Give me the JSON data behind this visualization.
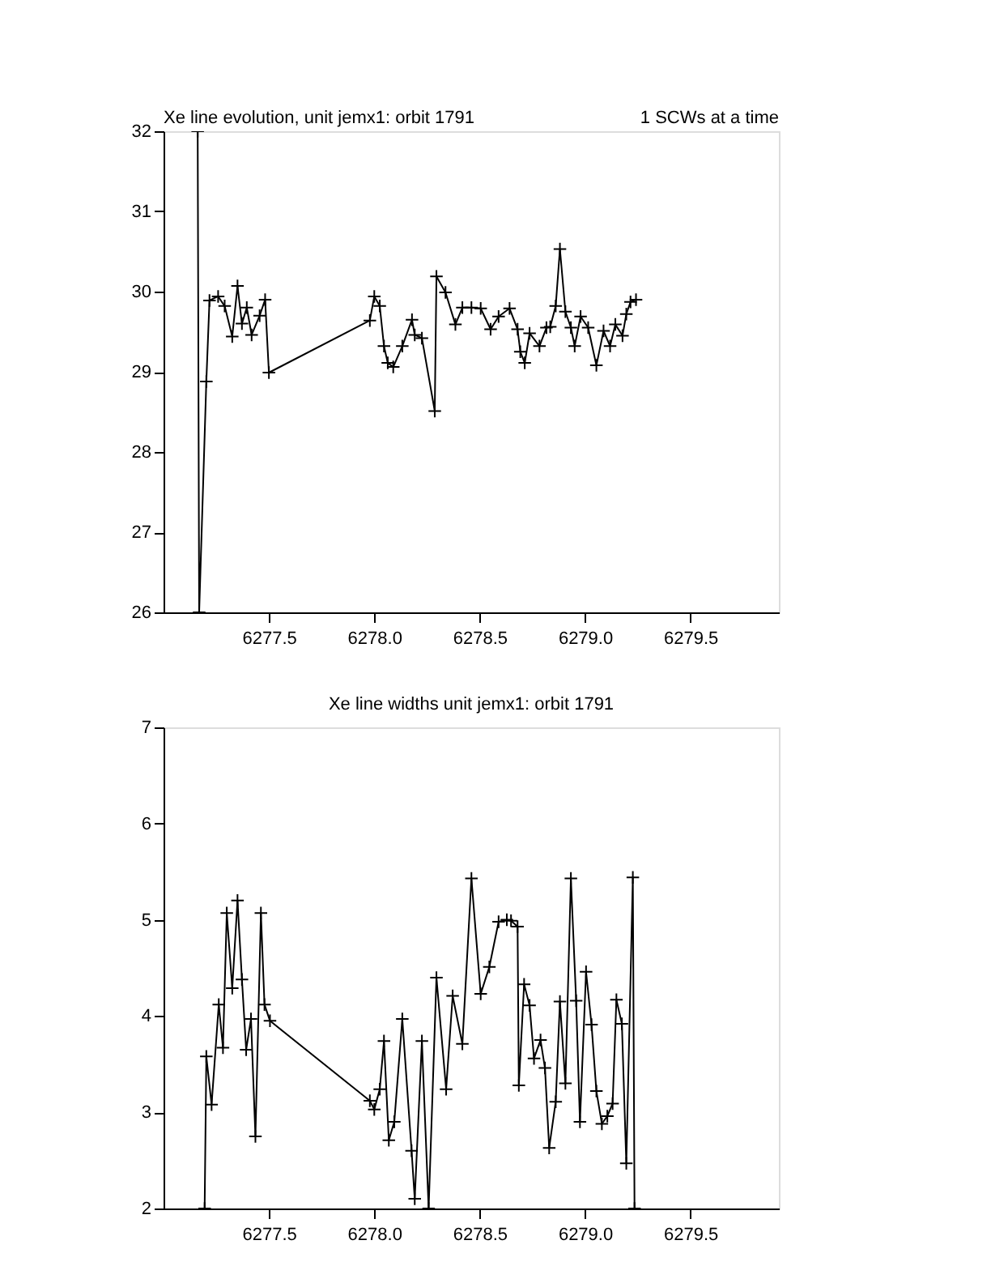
{
  "chart_data": [
    {
      "type": "line",
      "title": "Xe line evolution, unit jemx1: orbit 1791",
      "subtitle": "1 SCWs at a time",
      "marker": "cross",
      "line_style": "solid",
      "grid": false,
      "xlim": [
        6277.0,
        6279.92
      ],
      "xticks": [
        {
          "value": 6277.5,
          "label": "6277.5"
        },
        {
          "value": 6278.0,
          "label": "6278.0"
        },
        {
          "value": 6278.5,
          "label": "6278.5"
        },
        {
          "value": 6279.0,
          "label": "6279.0"
        },
        {
          "value": 6279.5,
          "label": "6279.5"
        }
      ],
      "ylim": [
        26,
        32
      ],
      "yticks": [
        26,
        27,
        28,
        29,
        30,
        31,
        32
      ],
      "series": [
        {
          "color": "#000000",
          "x": [
            6277.162,
            6277.169,
            6277.203,
            6277.218,
            6277.259,
            6277.29,
            6277.326,
            6277.351,
            6277.372,
            6277.395,
            6277.418,
            6277.456,
            6277.482,
            6277.5,
            6277.979,
            6278.0,
            6278.026,
            6278.046,
            6278.064,
            6278.09,
            6278.133,
            6278.179,
            6278.192,
            6278.226,
            6278.287,
            6278.295,
            6278.338,
            6278.385,
            6278.418,
            6278.461,
            6278.505,
            6278.552,
            6278.59,
            6278.642,
            6278.68,
            6278.693,
            6278.714,
            6278.737,
            6278.784,
            6278.817,
            6278.835,
            6278.861,
            6278.881,
            6278.907,
            6278.933,
            6278.951,
            6278.979,
            6279.015,
            6279.054,
            6279.088,
            6279.119,
            6279.144,
            6279.178,
            6279.196,
            6279.216,
            6279.242
          ],
          "values": [
            32,
            26,
            28.88,
            29.89,
            29.94,
            29.82,
            29.44,
            30.07,
            29.6,
            29.8,
            29.46,
            29.7,
            29.9,
            28.99,
            29.64,
            29.94,
            29.82,
            29.32,
            29.11,
            29.06,
            29.32,
            29.65,
            29.46,
            29.42,
            28.51,
            30.19,
            29.99,
            29.59,
            29.8,
            29.8,
            29.79,
            29.53,
            29.69,
            29.79,
            29.53,
            29.25,
            29.11,
            29.48,
            29.32,
            29.55,
            29.56,
            29.82,
            30.53,
            29.75,
            29.55,
            29.32,
            29.69,
            29.55,
            29.08,
            29.51,
            29.32,
            29.59,
            29.45,
            29.72,
            29.87,
            29.9
          ]
        }
      ]
    },
    {
      "type": "line",
      "title": "Xe line widths unit jemx1: orbit 1791",
      "marker": "cross",
      "line_style": "solid",
      "grid": false,
      "xlim": [
        6277.0,
        6279.92
      ],
      "xticks": [
        {
          "value": 6277.5,
          "label": "6277.5"
        },
        {
          "value": 6278.0,
          "label": "6278.0"
        },
        {
          "value": 6278.5,
          "label": "6278.5"
        },
        {
          "value": 6279.0,
          "label": "6279.0"
        },
        {
          "value": 6279.5,
          "label": "6279.5"
        }
      ],
      "ylim": [
        2,
        7
      ],
      "yticks": [
        2,
        3,
        4,
        5,
        6,
        7
      ],
      "series": [
        {
          "color": "#000000",
          "x": [
            6277.195,
            6277.203,
            6277.228,
            6277.262,
            6277.282,
            6277.3,
            6277.326,
            6277.351,
            6277.372,
            6277.392,
            6277.415,
            6277.436,
            6277.462,
            6277.479,
            6277.505,
            6277.979,
            6278.0,
            6278.026,
            6278.046,
            6278.069,
            6278.095,
            6278.133,
            6278.177,
            6278.192,
            6278.226,
            6278.258,
            6278.295,
            6278.341,
            6278.372,
            6278.418,
            6278.461,
            6278.505,
            6278.546,
            6278.59,
            6278.629,
            6278.649,
            6278.68,
            6278.686,
            6278.711,
            6278.737,
            6278.758,
            6278.789,
            6278.81,
            6278.83,
            6278.861,
            6278.881,
            6278.907,
            6278.933,
            6278.958,
            6278.976,
            6279.005,
            6279.031,
            6279.054,
            6279.08,
            6279.106,
            6279.131,
            6279.149,
            6279.175,
            6279.196,
            6279.227,
            6279.235
          ],
          "values": [
            2,
            3.58,
            3.08,
            4.12,
            3.67,
            5.07,
            4.29,
            5.2,
            4.38,
            3.65,
            3.97,
            2.75,
            5.07,
            4.12,
            3.95,
            3.12,
            3.03,
            3.24,
            3.74,
            2.71,
            2.9,
            3.97,
            2.6,
            2.1,
            3.74,
            2,
            4.4,
            3.24,
            4.21,
            3.71,
            5.43,
            4.23,
            4.51,
            4.98,
            5.0,
            4.99,
            4.93,
            3.28,
            4.33,
            4.11,
            3.56,
            3.75,
            3.46,
            2.63,
            3.11,
            4.15,
            3.3,
            5.43,
            4.16,
            2.9,
            4.46,
            3.91,
            3.22,
            2.88,
            2.96,
            3.09,
            4.17,
            3.92,
            2.47,
            5.44,
            2
          ]
        }
      ]
    }
  ]
}
